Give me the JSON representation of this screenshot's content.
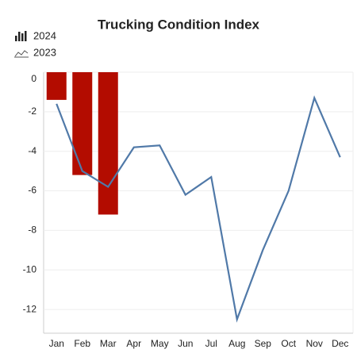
{
  "chart_data": {
    "type": "bar_line",
    "title": "Trucking Condition Index",
    "categories": [
      "Jan",
      "Feb",
      "Mar",
      "Apr",
      "May",
      "Jun",
      "Jul",
      "Aug",
      "Sep",
      "Oct",
      "Nov",
      "Dec"
    ],
    "series": [
      {
        "name": "2024",
        "type": "bar",
        "color": "#b30c00",
        "values": [
          -1.4,
          -5.2,
          -7.2,
          null,
          null,
          null,
          null,
          null,
          null,
          null,
          null,
          null
        ]
      },
      {
        "name": "2023",
        "type": "line",
        "color": "#5079a8",
        "values": [
          -1.6,
          -5.0,
          -5.8,
          -3.8,
          -3.7,
          -6.2,
          -5.3,
          -12.5,
          -9.0,
          -6.0,
          -1.3,
          -4.3
        ]
      }
    ],
    "ylim": [
      0,
      -13.2
    ],
    "yticks": [
      0,
      -2,
      -4,
      -6,
      -8,
      -10,
      -12
    ],
    "grid": true
  }
}
